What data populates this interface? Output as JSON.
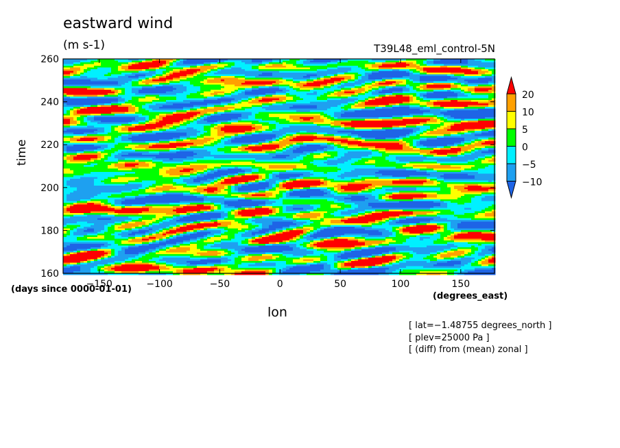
{
  "chart_data": {
    "type": "heatmap",
    "title": "eastward wind",
    "units": "(m s-1)",
    "run_label": "T39L48_eml_control-5N",
    "xlabel": "lon",
    "xunits": "(degrees_east)",
    "ylabel": "time",
    "yunits": "(days since 0000-01-01)",
    "xlim": [
      -180,
      178
    ],
    "ylim": [
      160,
      260
    ],
    "x_ticks": [
      -150,
      -100,
      -50,
      0,
      50,
      100,
      150
    ],
    "y_ticks": [
      160,
      180,
      200,
      220,
      240,
      260
    ],
    "colorbar": {
      "levels": [
        -10,
        -5,
        0,
        5,
        10,
        20
      ],
      "level_labels": [
        "20",
        "10",
        "5",
        "0",
        "−5",
        "−10"
      ],
      "colors": [
        "#1e64e6",
        "#1ea0f0",
        "#00f0ff",
        "#00ff00",
        "#ffff00",
        "#ffa000",
        "#ff0000"
      ],
      "extend": "both"
    },
    "annotations": [
      "[ lat=−1.48755 degrees_north ]",
      "[ plev=25000 Pa ]",
      "[ (diff) from (mean) zonal ]"
    ]
  }
}
